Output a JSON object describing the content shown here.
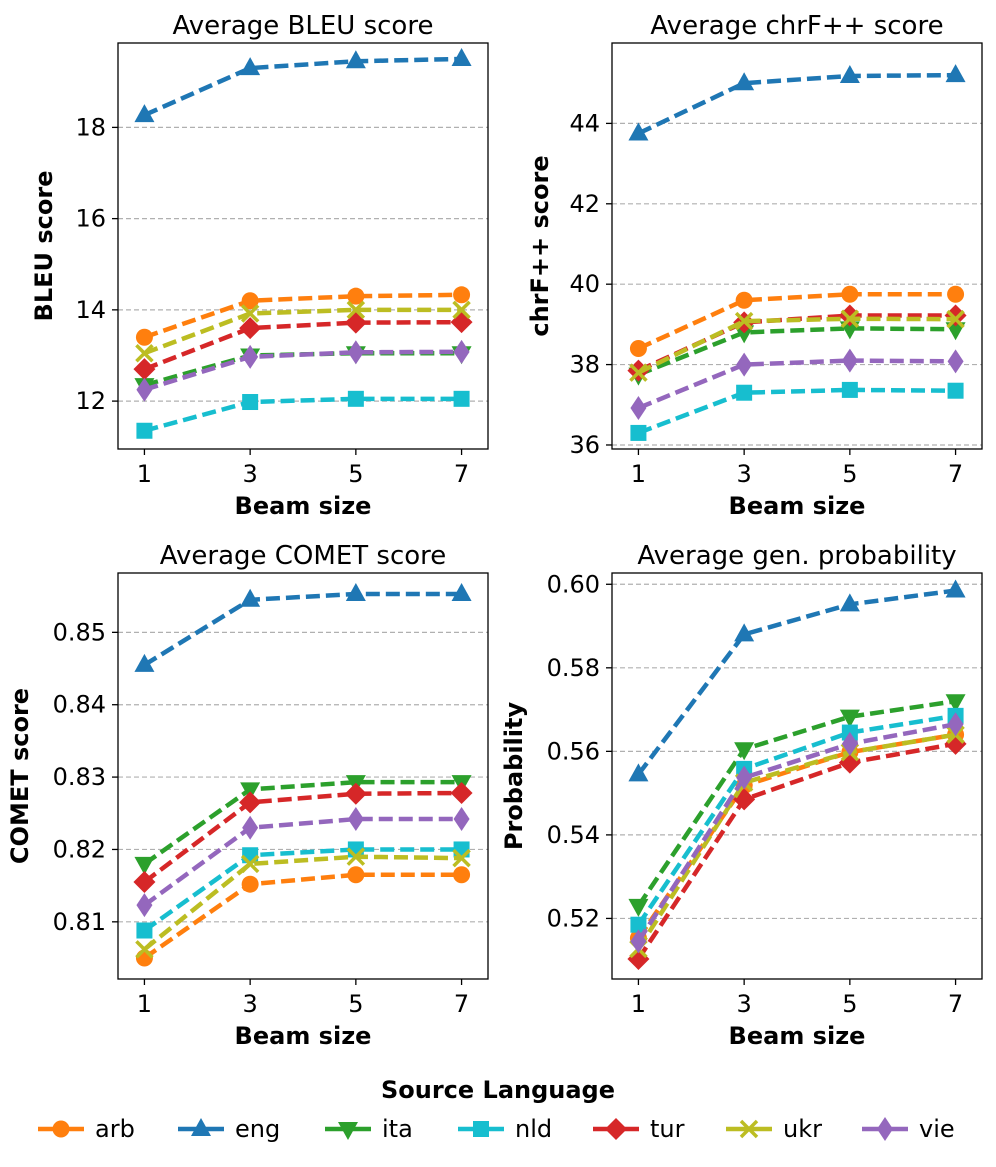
{
  "chart_data": [
    {
      "type": "line",
      "title": "Average BLEU score",
      "xlabel": "Beam size",
      "ylabel": "BLEU score",
      "x": [
        1,
        3,
        5,
        7
      ],
      "xlim": [
        0.5,
        7.5
      ],
      "ylim": [
        10.95,
        19.85
      ],
      "yticks": [
        12,
        14,
        16,
        18
      ],
      "ytick_labels": [
        "12",
        "14",
        "16",
        "18"
      ],
      "grid": "y-dashed",
      "series": [
        {
          "name": "arb",
          "values": [
            13.4,
            14.2,
            14.3,
            14.33
          ]
        },
        {
          "name": "eng",
          "values": [
            18.27,
            19.3,
            19.45,
            19.5
          ]
        },
        {
          "name": "ita",
          "values": [
            12.35,
            13.0,
            13.05,
            13.05
          ]
        },
        {
          "name": "nld",
          "values": [
            11.35,
            11.98,
            12.05,
            12.05
          ]
        },
        {
          "name": "tur",
          "values": [
            12.7,
            13.6,
            13.72,
            13.73
          ]
        },
        {
          "name": "ukr",
          "values": [
            13.05,
            13.92,
            14.0,
            14.0
          ]
        },
        {
          "name": "vie",
          "values": [
            12.25,
            12.97,
            13.07,
            13.08
          ]
        }
      ]
    },
    {
      "type": "line",
      "title": "Average chrF++ score",
      "xlabel": "Beam size",
      "ylabel": "chrF++ score",
      "x": [
        1,
        3,
        5,
        7
      ],
      "xlim": [
        0.5,
        7.5
      ],
      "ylim": [
        35.9,
        46.0
      ],
      "yticks": [
        36,
        38,
        40,
        42,
        44
      ],
      "ytick_labels": [
        "36",
        "38",
        "40",
        "42",
        "44"
      ],
      "grid": "y-dashed",
      "series": [
        {
          "name": "arb",
          "values": [
            38.4,
            39.6,
            39.75,
            39.75
          ]
        },
        {
          "name": "eng",
          "values": [
            43.75,
            45.0,
            45.18,
            45.2
          ]
        },
        {
          "name": "ita",
          "values": [
            37.75,
            38.8,
            38.9,
            38.88
          ]
        },
        {
          "name": "nld",
          "values": [
            36.3,
            37.3,
            37.37,
            37.35
          ]
        },
        {
          "name": "tur",
          "values": [
            37.85,
            39.05,
            39.22,
            39.22
          ]
        },
        {
          "name": "ukr",
          "values": [
            37.8,
            39.08,
            39.14,
            39.13
          ]
        },
        {
          "name": "vie",
          "values": [
            36.92,
            38.0,
            38.1,
            38.08
          ]
        }
      ]
    },
    {
      "type": "line",
      "title": "Average COMET score",
      "xlabel": "Beam size",
      "ylabel": "COMET score",
      "x": [
        1,
        3,
        5,
        7
      ],
      "xlim": [
        0.5,
        7.5
      ],
      "ylim": [
        0.8021,
        0.8582
      ],
      "yticks": [
        0.81,
        0.82,
        0.83,
        0.84,
        0.85
      ],
      "ytick_labels": [
        "0.81",
        "0.82",
        "0.83",
        "0.84",
        "0.85"
      ],
      "grid": "y-dashed",
      "series": [
        {
          "name": "arb",
          "values": [
            0.805,
            0.8152,
            0.8165,
            0.8165
          ]
        },
        {
          "name": "eng",
          "values": [
            0.8455,
            0.8545,
            0.8553,
            0.8553
          ]
        },
        {
          "name": "ita",
          "values": [
            0.818,
            0.8283,
            0.8293,
            0.8293
          ]
        },
        {
          "name": "nld",
          "values": [
            0.8088,
            0.8192,
            0.82,
            0.82
          ]
        },
        {
          "name": "tur",
          "values": [
            0.8155,
            0.8265,
            0.8277,
            0.8278
          ]
        },
        {
          "name": "ukr",
          "values": [
            0.8062,
            0.818,
            0.819,
            0.8188
          ]
        },
        {
          "name": "vie",
          "values": [
            0.8123,
            0.823,
            0.8242,
            0.8242
          ]
        }
      ]
    },
    {
      "type": "line",
      "title": "Average gen. probability",
      "xlabel": "Beam size",
      "ylabel": "Probability",
      "x": [
        1,
        3,
        5,
        7
      ],
      "xlim": [
        0.5,
        7.5
      ],
      "ylim": [
        0.5055,
        0.6027
      ],
      "yticks": [
        0.52,
        0.54,
        0.56,
        0.58,
        0.6
      ],
      "ytick_labels": [
        "0.52",
        "0.54",
        "0.56",
        "0.58",
        "0.60"
      ],
      "grid": "y-dashed",
      "series": [
        {
          "name": "arb",
          "values": [
            0.5153,
            0.5518,
            0.5598,
            0.564
          ]
        },
        {
          "name": "eng",
          "values": [
            0.5545,
            0.588,
            0.5952,
            0.5985
          ]
        },
        {
          "name": "ita",
          "values": [
            0.523,
            0.5605,
            0.5683,
            0.572
          ]
        },
        {
          "name": "nld",
          "values": [
            0.5185,
            0.5558,
            0.5645,
            0.5685
          ]
        },
        {
          "name": "tur",
          "values": [
            0.5103,
            0.5485,
            0.5573,
            0.5618
          ]
        },
        {
          "name": "ukr",
          "values": [
            0.5127,
            0.5525,
            0.5598,
            0.564
          ]
        },
        {
          "name": "vie",
          "values": [
            0.5145,
            0.5537,
            0.5618,
            0.5665
          ]
        }
      ]
    }
  ],
  "legend": {
    "title": "Source Language",
    "entries": [
      {
        "name": "arb",
        "color": "#ff7f0e",
        "marker": "circle"
      },
      {
        "name": "eng",
        "color": "#1f77b4",
        "marker": "triangle-up"
      },
      {
        "name": "ita",
        "color": "#2ca02c",
        "marker": "triangle-down"
      },
      {
        "name": "nld",
        "color": "#17becf",
        "marker": "square"
      },
      {
        "name": "tur",
        "color": "#d62728",
        "marker": "diamond"
      },
      {
        "name": "ukr",
        "color": "#bcbd22",
        "marker": "x"
      },
      {
        "name": "vie",
        "color": "#9467bd",
        "marker": "thin-diamond"
      }
    ]
  }
}
